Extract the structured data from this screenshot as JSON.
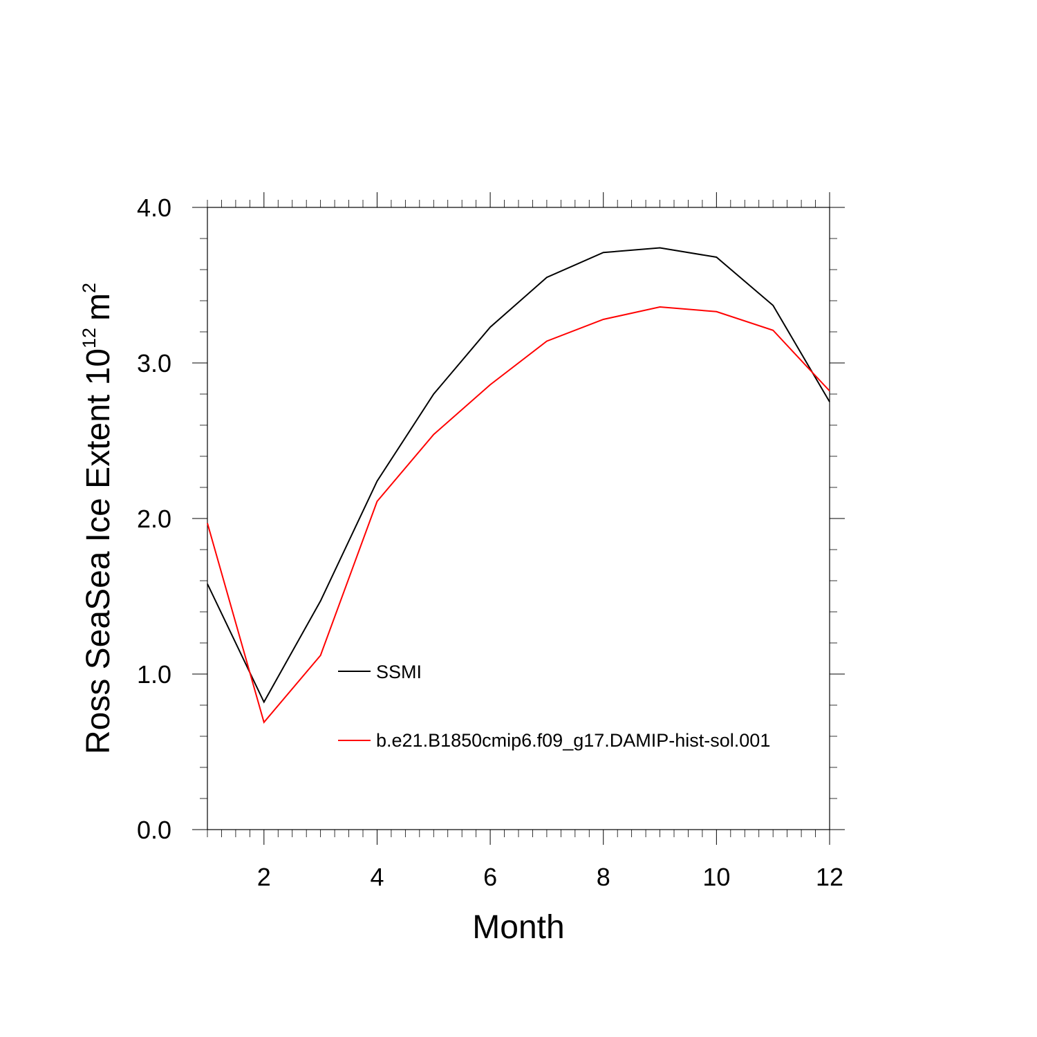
{
  "chart_data": {
    "type": "line",
    "title": "",
    "xlabel": "Month",
    "ylabel": {
      "main": "Ross SeaSea Ice Extent 10",
      "exponent": "12",
      "unit": "m",
      "unit_exponent": "2"
    },
    "xlim": [
      1,
      12
    ],
    "ylim": [
      0,
      4
    ],
    "x_ticks": [
      2,
      4,
      6,
      8,
      10,
      12
    ],
    "x_tick_labels": [
      "2",
      "4",
      "6",
      "8",
      "10",
      "12"
    ],
    "y_ticks": [
      0,
      1,
      2,
      3,
      4
    ],
    "y_tick_labels": [
      "0.0",
      "1.0",
      "2.0",
      "3.0",
      "4.0"
    ],
    "grid": false,
    "legend_position": "inside-lower-center",
    "x": [
      1,
      2,
      3,
      4,
      5,
      6,
      7,
      8,
      9,
      10,
      11,
      12
    ],
    "series": [
      {
        "name": "SSMI",
        "color": "#000000",
        "values": [
          1.58,
          0.82,
          1.47,
          2.24,
          2.8,
          3.23,
          3.55,
          3.71,
          3.74,
          3.68,
          3.37,
          2.75
        ]
      },
      {
        "name": "b.e21.B1850cmip6.f09_g17.DAMIP-hist-sol.001",
        "color": "#ff0000",
        "values": [
          1.97,
          0.69,
          1.12,
          2.11,
          2.54,
          2.86,
          3.14,
          3.28,
          3.36,
          3.33,
          3.21,
          2.82
        ]
      }
    ]
  }
}
